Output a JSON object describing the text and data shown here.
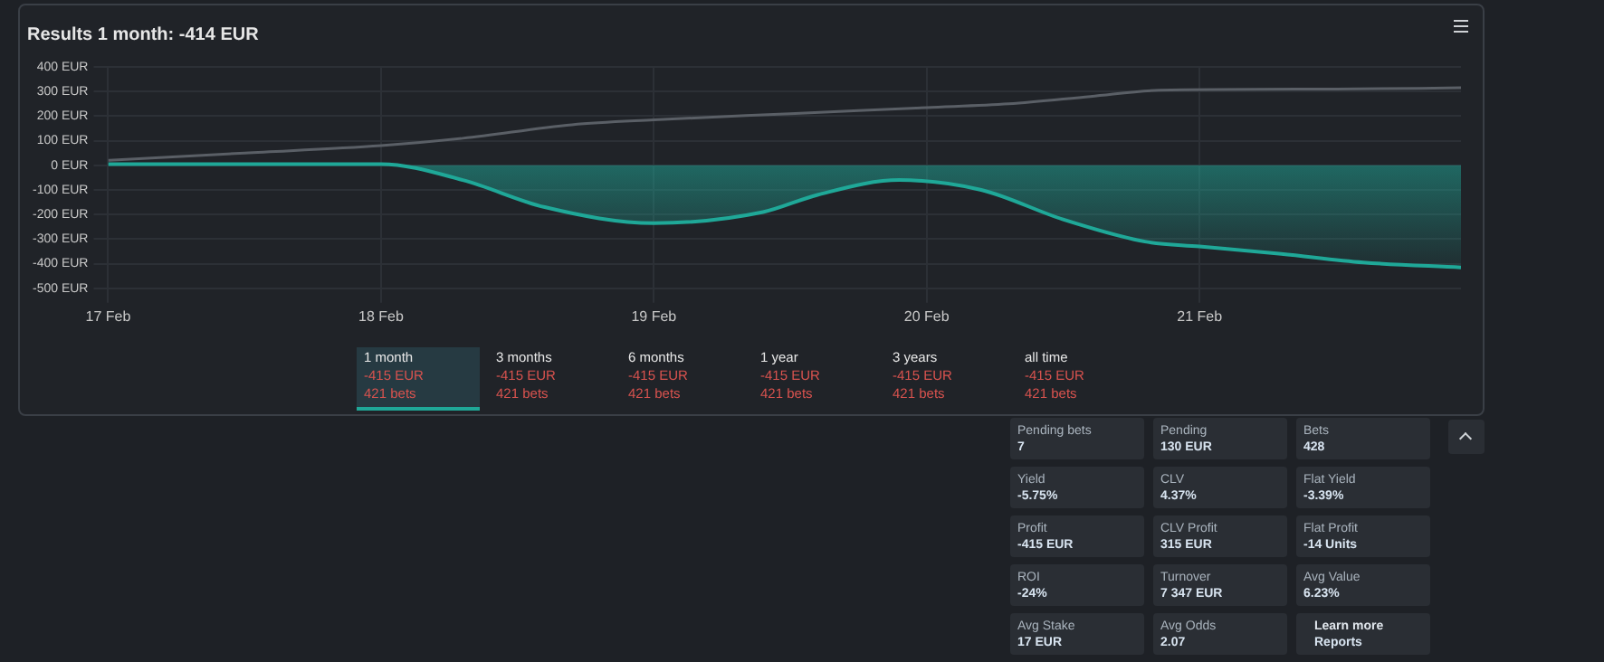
{
  "chart_data": [
    {
      "type": "area",
      "title": "Results 1 month: -414 EUR",
      "xlim": [
        "--02-17",
        "--02-21T23:00"
      ],
      "xticks": [
        {
          "value": "--02-17",
          "label": "17 Feb"
        },
        {
          "value": "--02-18",
          "label": "18 Feb"
        },
        {
          "value": "--02-19",
          "label": "19 Feb"
        },
        {
          "value": "--02-20",
          "label": "20 Feb"
        },
        {
          "value": "--02-21",
          "label": "21 Feb"
        }
      ],
      "ylim": [
        -500,
        400
      ],
      "yticks": [
        {
          "value": -500,
          "label": "-500 EUR"
        },
        {
          "value": -400,
          "label": "-400 EUR"
        },
        {
          "value": -300,
          "label": "-300 EUR"
        },
        {
          "value": -200,
          "label": "-200 EUR"
        },
        {
          "value": -100,
          "label": "-100 EUR"
        },
        {
          "value": 0,
          "label": "0 EUR"
        },
        {
          "value": 100,
          "label": "100 EUR"
        },
        {
          "value": 200,
          "label": "200 EUR"
        },
        {
          "value": 300,
          "label": "300 EUR"
        },
        {
          "value": 400,
          "label": "400 EUR"
        }
      ],
      "grid": true,
      "legend": false,
      "series": [
        {
          "type": "area",
          "color": "#1fa898",
          "x": [
            "--02-17",
            "--02-17T12:00",
            "--02-18",
            "--02-18T07:12",
            "--02-18T14:24",
            "--02-19",
            "--02-19T09:36",
            "--02-19T14:24",
            "--02-19T21:36",
            "--02-20T04:48",
            "--02-20T12:00",
            "--02-20T19:12",
            "--02-21",
            "--02-21T07:12",
            "--02-21T14:24",
            "--02-21T23:00"
          ],
          "values": [
            5,
            5,
            5,
            -60,
            -170,
            -235,
            -190,
            -120,
            -60,
            -100,
            -220,
            -310,
            -330,
            -360,
            -395,
            -415
          ]
        },
        {
          "type": "line",
          "color": "#5a5f66",
          "x": [
            "--02-17",
            "--02-17T12:00",
            "--02-18",
            "--02-18T07:12",
            "--02-18T16:48",
            "--02-19",
            "--02-19T12:00",
            "--02-20",
            "--02-20T07:12",
            "--02-20T14:24",
            "--02-20T20:24",
            "--02-21T12:00",
            "--02-21T23:00"
          ],
          "values": [
            20,
            50,
            80,
            110,
            165,
            185,
            210,
            235,
            250,
            280,
            305,
            310,
            315
          ]
        }
      ],
      "annotations": [
        "1 month",
        "-415 EUR",
        "421 bets",
        "3 months",
        "-415 EUR",
        "421 bets",
        "6 months",
        "-415 EUR",
        "421 bets",
        "1 year",
        "-415 EUR",
        "421 bets",
        "3 years",
        "-415 EUR",
        "421 bets",
        "all time",
        "-415 EUR",
        "421 bets"
      ]
    },
    {
      "type": "other",
      "annotations": [
        "Pending bets",
        "7",
        "Pending",
        "130 EUR",
        "Bets",
        "428",
        "Yield",
        "-5.75%",
        "CLV",
        "4.37%",
        "Flat Yield",
        "-3.39%",
        "Profit",
        "-415 EUR",
        "CLV Profit",
        "315 EUR",
        "Flat Profit",
        "-14 Units",
        "ROI",
        "-24%",
        "Turnover",
        "7 347 EUR",
        "Avg Value",
        "6.23%",
        "Avg Stake",
        "17 EUR",
        "Avg Odds",
        "2.07",
        "Learn more",
        "Reports"
      ]
    }
  ]
}
